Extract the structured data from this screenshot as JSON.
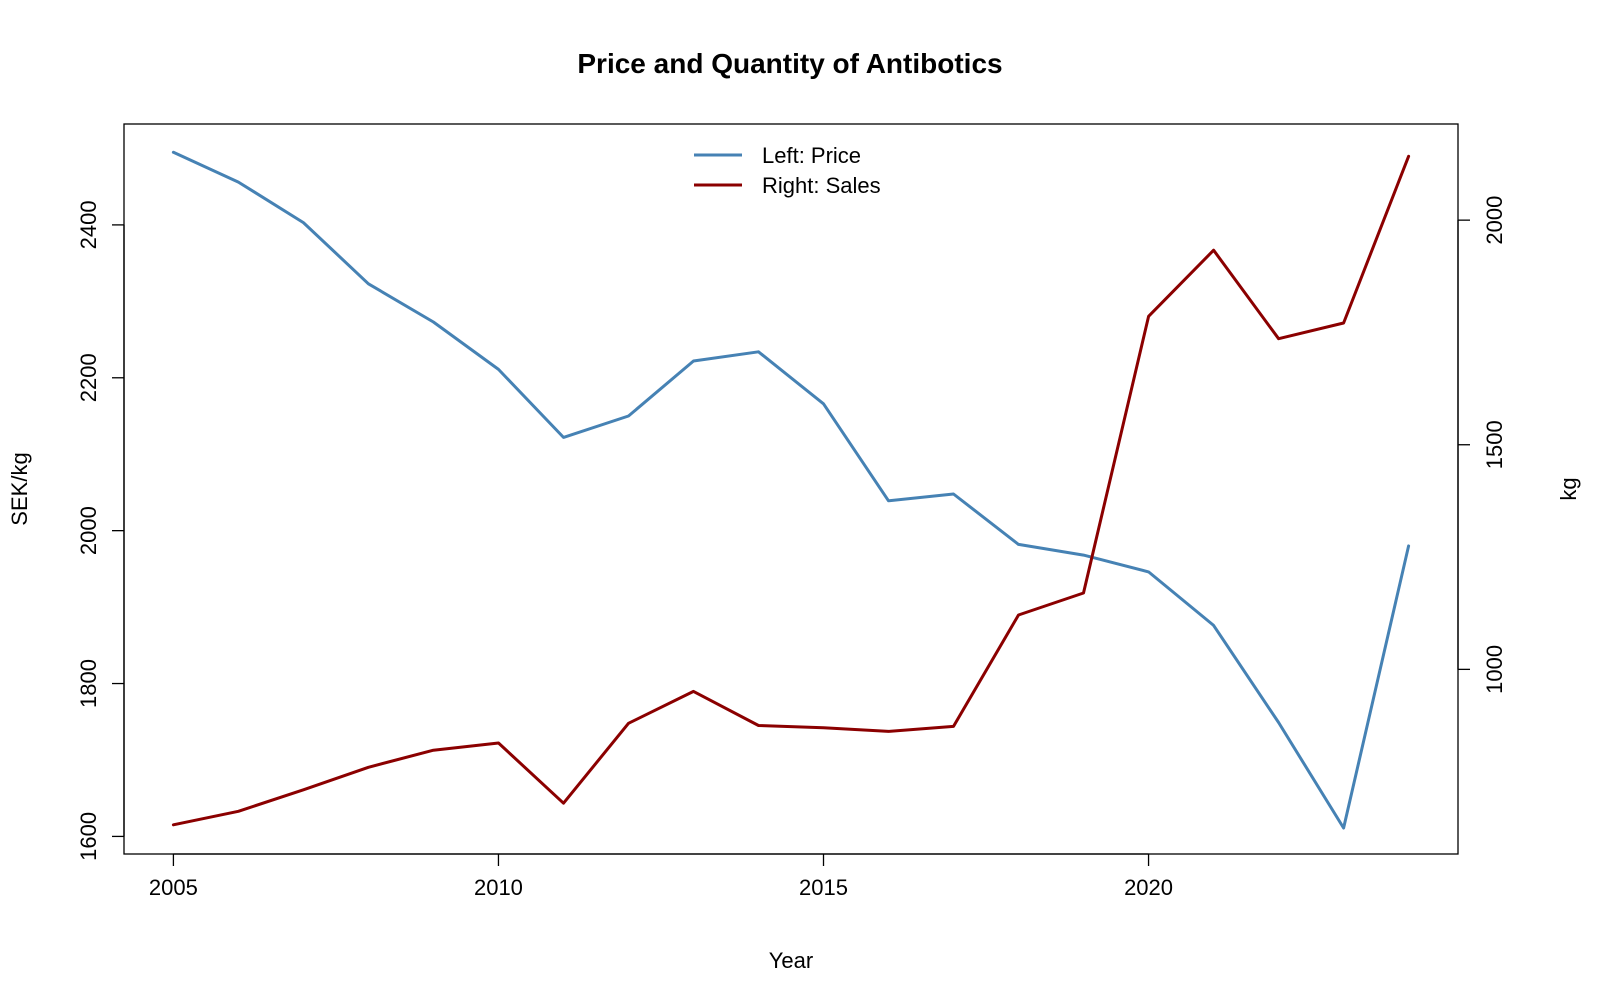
{
  "chart_data": {
    "type": "line",
    "title": "Price and Quantity of Antibotics",
    "xlabel": "Year",
    "ylabel_left": "SEK/kg",
    "ylabel_right": "kg",
    "x": [
      2005,
      2006,
      2007,
      2008,
      2009,
      2010,
      2011,
      2012,
      2013,
      2014,
      2015,
      2016,
      2017,
      2018,
      2019,
      2020,
      2021,
      2022,
      2023,
      2024
    ],
    "xticks": [
      "2005",
      "2010",
      "2015",
      "2020"
    ],
    "yticks_left": [
      "1600",
      "1800",
      "2000",
      "2200",
      "2400"
    ],
    "yticks_right": [
      "1000",
      "1500",
      "2000"
    ],
    "ylim_left": [
      1577,
      2532
    ],
    "ylim_right": [
      589,
      2214
    ],
    "grid": false,
    "legend_position": "top",
    "series": [
      {
        "name": "Left: Price",
        "axis": "left",
        "color": "#4682B4",
        "values": [
          2495,
          2456,
          2403,
          2323,
          2273,
          2211,
          2122,
          2150,
          2222,
          2234,
          2166,
          2039,
          2048,
          1982,
          1968,
          1946,
          1876,
          1749,
          1611,
          1980
        ]
      },
      {
        "name": "Right: Sales",
        "axis": "right",
        "color": "#8B0000",
        "values": [
          654,
          684,
          732,
          782,
          820,
          836,
          702,
          880,
          951,
          875,
          870,
          862,
          873,
          1121,
          1170,
          1786,
          1933,
          1736,
          1771,
          2142
        ]
      }
    ]
  }
}
